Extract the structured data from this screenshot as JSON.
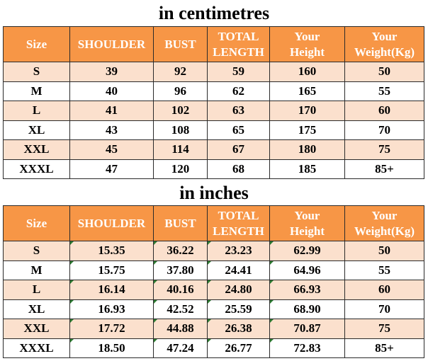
{
  "cm_title": "in centimetres",
  "in_title": "in inches",
  "headers": [
    "Size",
    "SHOULDER",
    "BUST",
    "TOTAL LENGTH",
    "Your Height",
    "Your Weight(Kg)"
  ],
  "headers_split": {
    "size": "Size",
    "shoulder": "SHOULDER",
    "bust": "BUST",
    "total_1": "TOTAL",
    "total_2": "LENGTH",
    "height_1": "Your",
    "height_2": "Height",
    "weight_1": "Your",
    "weight_2": "Weight(Kg)"
  },
  "cm_rows": [
    [
      "S",
      "39",
      "92",
      "59",
      "160",
      "50"
    ],
    [
      "M",
      "40",
      "96",
      "62",
      "165",
      "55"
    ],
    [
      "L",
      "41",
      "102",
      "63",
      "170",
      "60"
    ],
    [
      "XL",
      "43",
      "108",
      "65",
      "175",
      "70"
    ],
    [
      "XXL",
      "45",
      "114",
      "67",
      "180",
      "75"
    ],
    [
      "XXXL",
      "47",
      "120",
      "68",
      "185",
      "85+"
    ]
  ],
  "in_rows": [
    [
      "S",
      "15.35",
      "36.22",
      "23.23",
      "62.99",
      "50"
    ],
    [
      "M",
      "15.75",
      "37.80",
      "24.41",
      "64.96",
      "55"
    ],
    [
      "L",
      "16.14",
      "40.16",
      "24.80",
      "66.93",
      "60"
    ],
    [
      "XL",
      "16.93",
      "42.52",
      "25.59",
      "68.90",
      "70"
    ],
    [
      "XXL",
      "17.72",
      "44.88",
      "26.38",
      "70.87",
      "75"
    ],
    [
      "XXXL",
      "18.50",
      "47.24",
      "26.77",
      "72.83",
      "85+"
    ]
  ],
  "colors": {
    "header_bg": "#f79646",
    "header_text": "#ffffff",
    "odd_row_bg": "#fbe0cd",
    "even_row_bg": "#ffffff"
  }
}
